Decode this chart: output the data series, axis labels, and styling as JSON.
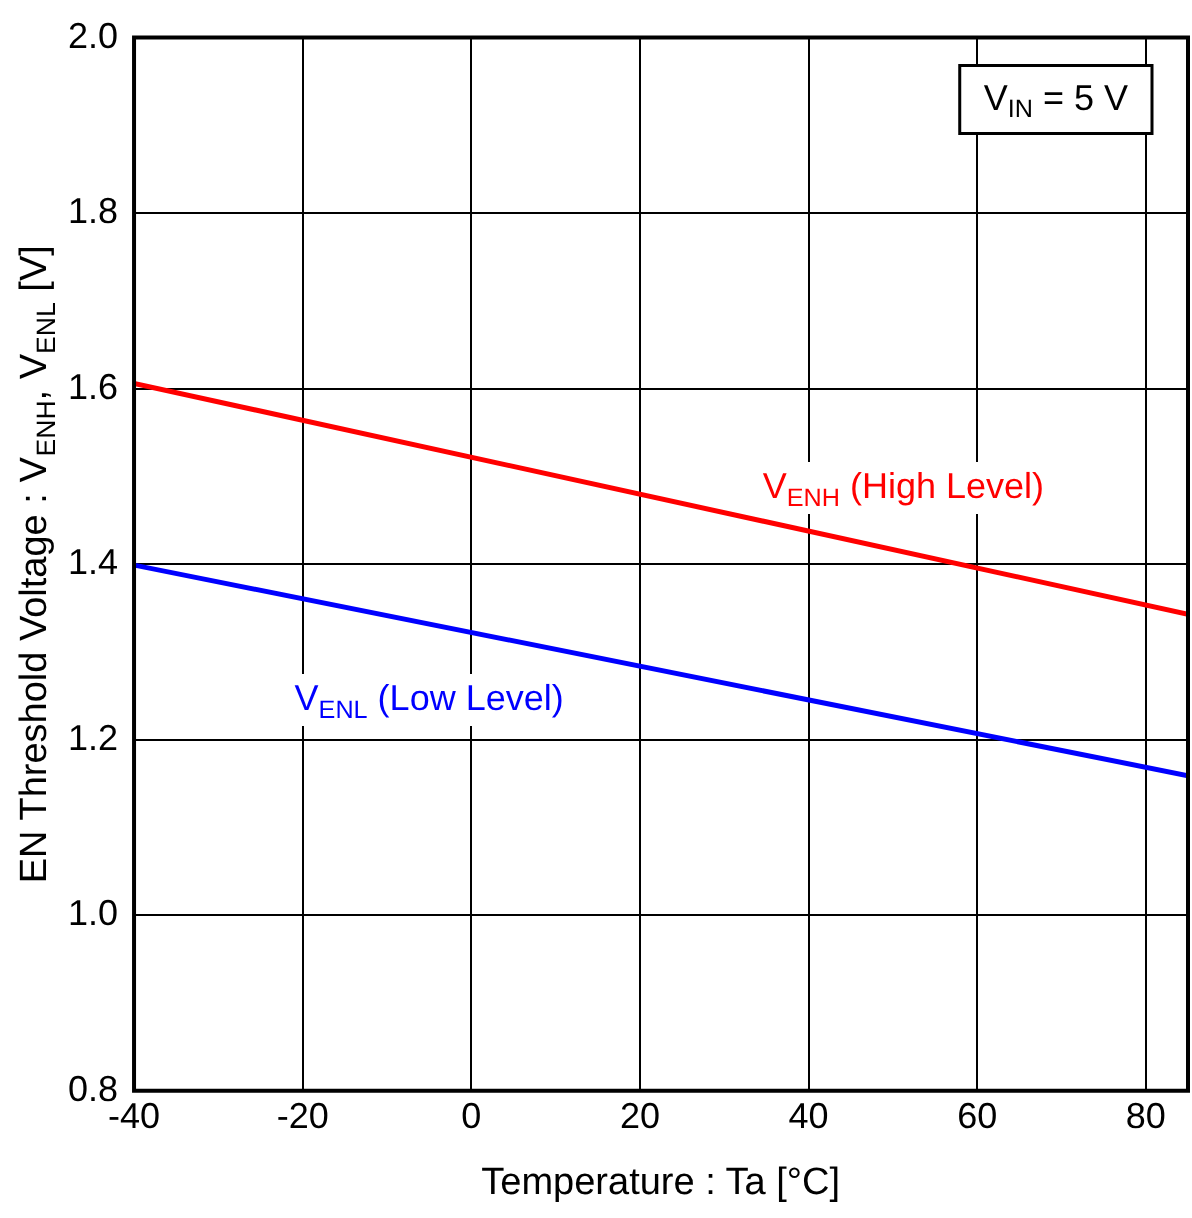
{
  "chart_data": {
    "type": "line",
    "xlabel": "Temperature : Ta [°C]",
    "ylabel": "EN Threshold Voltage : V$_{ENH}$, V$_{ENL}$ [V]",
    "x": [
      -40,
      85
    ],
    "series": [
      {
        "name": "V$_{ENH}$ (High Level)",
        "color": "#ff0000",
        "values": [
          1.606,
          1.343
        ]
      },
      {
        "name": "V$_{ENL}$ (Low Level)",
        "color": "#0000ff",
        "values": [
          1.399,
          1.159
        ]
      }
    ],
    "xlim": [
      -40,
      85
    ],
    "xticks": [
      -40,
      -20,
      0,
      20,
      40,
      60,
      80
    ],
    "ylim": [
      0.8,
      2.0
    ],
    "yticks": [
      {
        "value": 0.8,
        "label": "0.8"
      },
      {
        "value": 1.0,
        "label": "1.0"
      },
      {
        "value": 1.2,
        "label": "1.2"
      },
      {
        "value": 1.4,
        "label": "1.4"
      },
      {
        "value": 1.6,
        "label": "1.6"
      },
      {
        "value": 1.8,
        "label": "1.8"
      },
      {
        "value": 2.0,
        "label": "2.0"
      }
    ],
    "grid": true,
    "legend": false,
    "marker": "none",
    "line_style": "solid",
    "annotations": [
      "V$_{IN}$ = 5 V"
    ]
  }
}
